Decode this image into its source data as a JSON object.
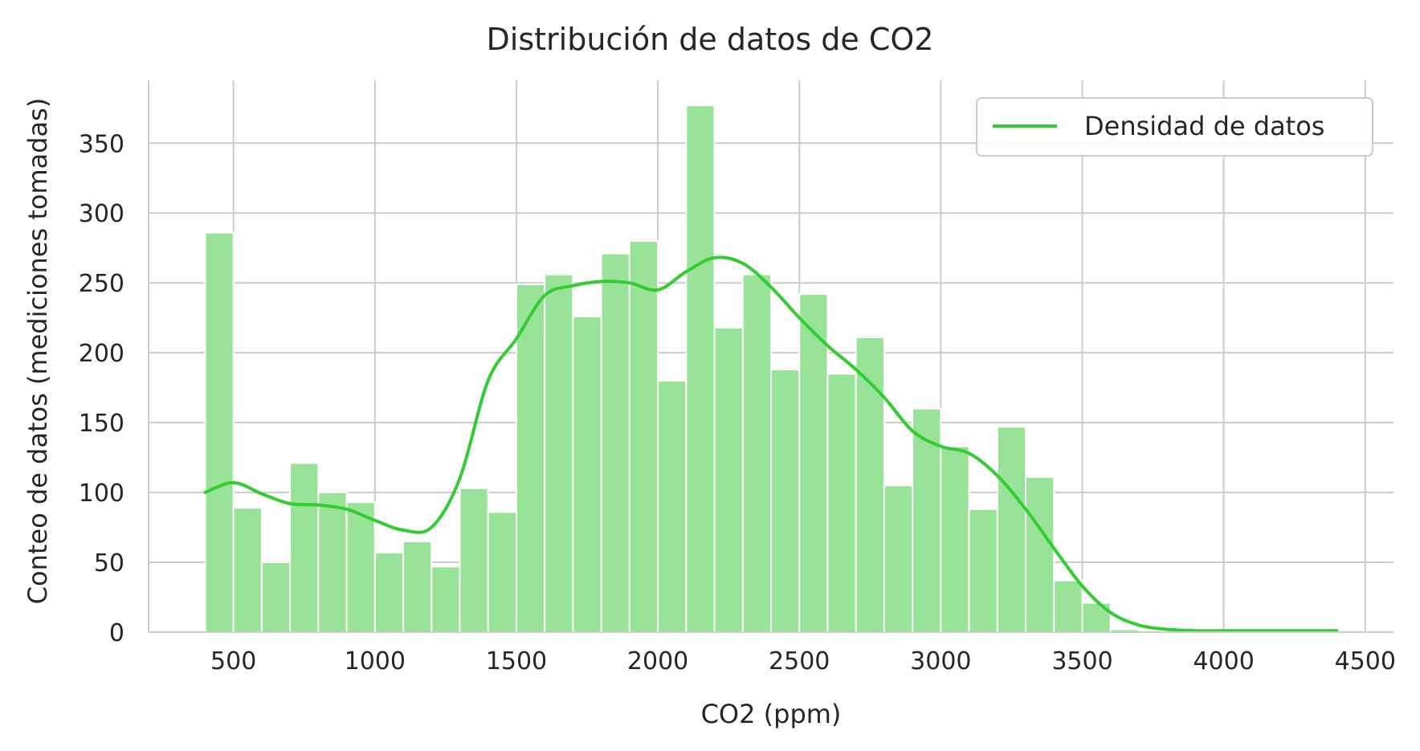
{
  "chart_data": {
    "type": "bar",
    "title": "Distribución de datos de CO2",
    "xlabel": "CO2 (ppm)",
    "ylabel": "Conteo de datos (mediciones tomadas)",
    "xlim": [
      200,
      4600
    ],
    "ylim": [
      0,
      395
    ],
    "xticks": [
      500,
      1000,
      1500,
      2000,
      2500,
      3000,
      3500,
      4000,
      4500
    ],
    "yticks": [
      0,
      50,
      100,
      150,
      200,
      250,
      300,
      350
    ],
    "bin_start": 400,
    "bin_width": 100,
    "counts": [
      286,
      89,
      50,
      121,
      100,
      93,
      57,
      65,
      47,
      103,
      86,
      249,
      256,
      226,
      271,
      280,
      180,
      377,
      218,
      256,
      188,
      242,
      185,
      211,
      105,
      160,
      133,
      88,
      147,
      111,
      37,
      21,
      2
    ],
    "bar_color": "#98e397",
    "kde": {
      "name": "Densidad de datos",
      "color": "#33cc33",
      "x": [
        400,
        500,
        600,
        700,
        800,
        900,
        1000,
        1100,
        1200,
        1300,
        1400,
        1500,
        1600,
        1700,
        1800,
        1900,
        2000,
        2100,
        2200,
        2300,
        2400,
        2500,
        2600,
        2700,
        2800,
        2900,
        3000,
        3100,
        3200,
        3300,
        3400,
        3500,
        3600,
        3700,
        3800,
        3900,
        4000,
        4100,
        4200,
        4300,
        4400
      ],
      "y": [
        100,
        107,
        99,
        92,
        91,
        88,
        80,
        73,
        75,
        110,
        180,
        210,
        241,
        248,
        251,
        250,
        245,
        258,
        268,
        264,
        247,
        225,
        205,
        188,
        168,
        144,
        133,
        128,
        112,
        88,
        60,
        33,
        14,
        5,
        2,
        1,
        1,
        1,
        1,
        1,
        1
      ]
    },
    "legend": {
      "location": "top-right",
      "entries": [
        "Densidad de datos"
      ]
    },
    "grid": true
  }
}
